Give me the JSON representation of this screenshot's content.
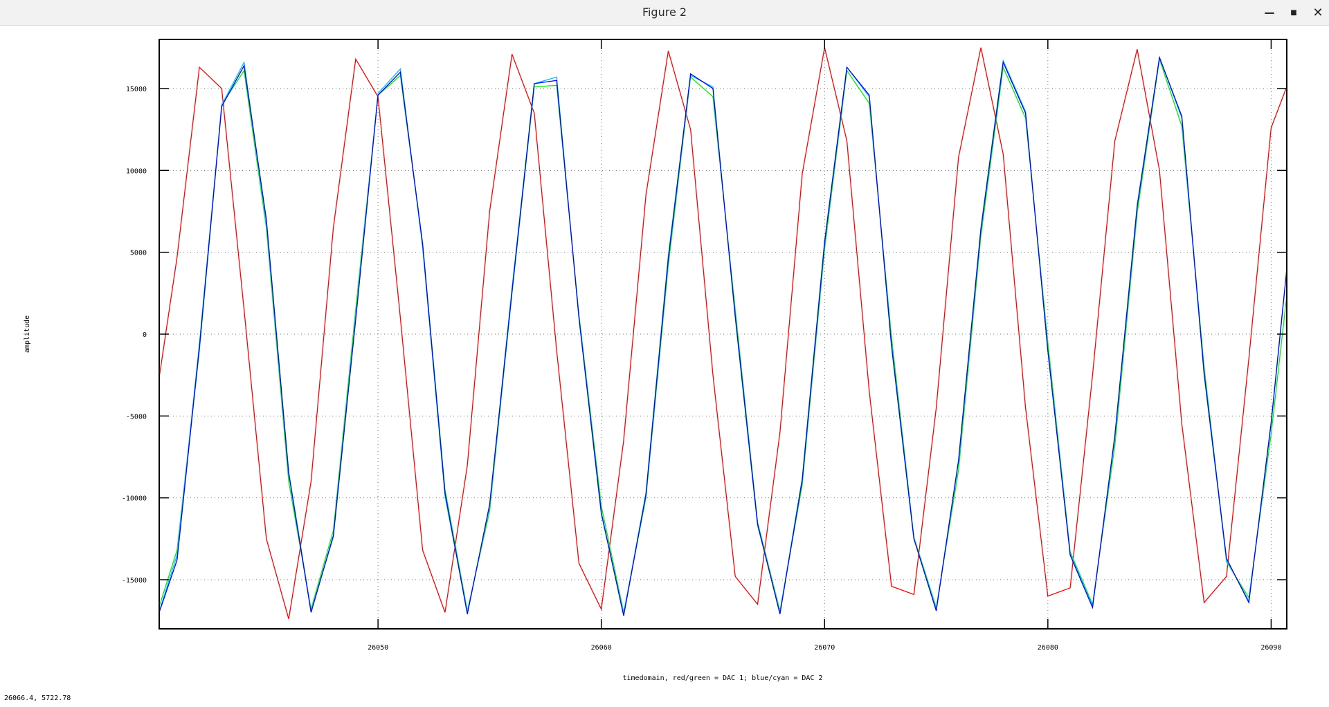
{
  "window": {
    "title": "Figure 2",
    "minimize_icon": "minimize-icon",
    "maximize_icon": "maximize-icon",
    "close_icon": "close-icon"
  },
  "status": {
    "coordinates": "26066.4,  5722.78"
  },
  "colors": {
    "red": "#ff0000",
    "green": "#00ee00",
    "blue": "#0000ff",
    "cyan": "#00c0ff",
    "grid": "#707070"
  },
  "chart_data": {
    "type": "line",
    "title": "",
    "xlabel": "timedomain, red/green = DAC 1; blue/cyan = DAC 2",
    "ylabel": "amplitude",
    "xlim": [
      26040.2,
      26090.7
    ],
    "ylim": [
      -18000,
      18000
    ],
    "xticks": [
      26050,
      26060,
      26070,
      26080,
      26090
    ],
    "yticks": [
      15000,
      10000,
      5000,
      0,
      -5000,
      -10000,
      -15000
    ],
    "grid": true,
    "x": [
      26040,
      26041,
      26042,
      26043,
      26044,
      26045,
      26046,
      26047,
      26048,
      26049,
      26050,
      26051,
      26052,
      26053,
      26054,
      26055,
      26056,
      26057,
      26058,
      26059,
      26060,
      26061,
      26062,
      26063,
      26064,
      26065,
      26066,
      26067,
      26068,
      26069,
      26070,
      26071,
      26072,
      26073,
      26074,
      26075,
      26076,
      26077,
      26078,
      26079,
      26080,
      26081,
      26082,
      26083,
      26084,
      26085,
      26086,
      26087,
      26088,
      26089,
      26090,
      26091
    ],
    "series": [
      {
        "name": "red",
        "color": "#ff0000",
        "values": [
          -4500,
          4700,
          16300,
          15000,
          1500,
          -12500,
          -17400,
          -9000,
          6500,
          16800,
          14500,
          1000,
          -13200,
          -17000,
          -8000,
          7500,
          17100,
          13500,
          -1000,
          -14000,
          -16800,
          -6500,
          8500,
          17300,
          12500,
          -2500,
          -14800,
          -16500,
          -6000,
          9800,
          17500,
          11800,
          -3500,
          -15400,
          -15900,
          -4500,
          10800,
          17500,
          11000,
          -4500,
          -16000,
          -15500,
          -2500,
          11800,
          17400,
          10000,
          -5500,
          -16400,
          -14800,
          -1500,
          12600,
          16200
        ],
        "encoding": "last point drawn only up to the plot edge"
      },
      {
        "name": "green",
        "color": "#00ee00",
        "values": [
          -17500,
          -13200,
          -1000,
          14000,
          16100,
          6500,
          -9000,
          -16800,
          -12000,
          1500,
          14600,
          15800,
          5500,
          -9500,
          -16900,
          -10800,
          2500,
          15100,
          15200,
          1200,
          -10500,
          -17000,
          -10000,
          4200,
          15700,
          14500,
          1500,
          -11500,
          -16900,
          -9200,
          5200,
          16100,
          14100,
          -200,
          -12400,
          -16700,
          -8300,
          6000,
          16300,
          13200,
          -500,
          -13300,
          -16500,
          -6800,
          7400,
          16800,
          12700,
          -2000,
          -13900,
          -16100,
          -6100,
          6000
        ]
      },
      {
        "name": "cyan",
        "color": "#00c0ff",
        "values": [
          -17800,
          -13500,
          -600,
          14000,
          16600,
          6800,
          -8400,
          -16900,
          -12400,
          1000,
          14700,
          16200,
          5300,
          -9900,
          -17000,
          -10500,
          2800,
          15300,
          15700,
          1000,
          -11000,
          -17100,
          -9700,
          4800,
          15800,
          15100,
          1000,
          -11700,
          -17000,
          -8800,
          5700,
          16300,
          14500,
          -800,
          -12500,
          -16800,
          -7800,
          6500,
          16700,
          13600,
          -1000,
          -13400,
          -16600,
          -6300,
          7900,
          16900,
          13200,
          -2500,
          -13800,
          -16300,
          -5500,
          8000
        ]
      },
      {
        "name": "blue",
        "color": "#0000ff",
        "values": [
          -17800,
          -13800,
          -800,
          13900,
          16400,
          7000,
          -8500,
          -17000,
          -12300,
          900,
          14600,
          16000,
          5500,
          -9700,
          -17100,
          -10400,
          2600,
          15300,
          15500,
          1000,
          -10900,
          -17200,
          -9800,
          4600,
          15900,
          15000,
          1100,
          -11600,
          -17100,
          -8900,
          5600,
          16300,
          14600,
          -700,
          -12500,
          -16900,
          -7700,
          6400,
          16600,
          13500,
          -1000,
          -13500,
          -16700,
          -6200,
          7800,
          16900,
          13300,
          -2400,
          -13700,
          -16400,
          -5400,
          8000
        ]
      }
    ]
  }
}
